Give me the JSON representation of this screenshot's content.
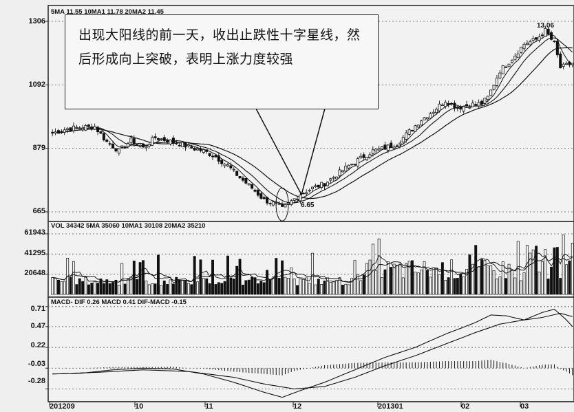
{
  "chart_data": {
    "type": "candlestick",
    "title": "",
    "annotation": "出现大阳线的前一天，收出止跌性十字星线，然后形成向上突破，表明上涨力度较强",
    "high_label": "13.06",
    "low_label": "6.65",
    "x_ticks": [
      "201209",
      "10",
      "11",
      "12",
      "201301",
      "02",
      "03"
    ],
    "price_panel": {
      "legend": "5MA 11.55  10MA1 11.78  20MA2 11.45",
      "y_ticks": [
        "1306",
        "1092",
        "879",
        "665"
      ],
      "ylim": [
        665,
        1306
      ]
    },
    "volume_panel": {
      "legend": "VOL 34342  5MA 35060  10MA1 30108  20MA2 35210",
      "y_ticks": [
        "61943",
        "41295",
        "20648"
      ],
      "ylim": [
        0,
        61943
      ]
    },
    "macd_panel": {
      "legend": "MACD- DIF 0.26  MACD 0.41  DIF-MACD -0.15",
      "y_ticks": [
        "0.71",
        "0.47",
        "0.22",
        "-0.03",
        "-0.28"
      ],
      "ylim": [
        -0.4,
        0.75
      ]
    },
    "price_waypoints": [
      [
        0,
        930
      ],
      [
        5,
        945
      ],
      [
        10,
        950
      ],
      [
        14,
        952
      ],
      [
        18,
        900
      ],
      [
        22,
        870
      ],
      [
        26,
        905
      ],
      [
        30,
        880
      ],
      [
        34,
        915
      ],
      [
        38,
        905
      ],
      [
        42,
        895
      ],
      [
        46,
        880
      ],
      [
        50,
        870
      ],
      [
        54,
        850
      ],
      [
        58,
        820
      ],
      [
        62,
        780
      ],
      [
        66,
        745
      ],
      [
        70,
        705
      ],
      [
        74,
        690
      ],
      [
        76,
        675
      ],
      [
        79,
        700
      ],
      [
        82,
        725
      ],
      [
        86,
        745
      ],
      [
        90,
        760
      ],
      [
        94,
        790
      ],
      [
        98,
        820
      ],
      [
        102,
        845
      ],
      [
        106,
        870
      ],
      [
        110,
        880
      ],
      [
        114,
        895
      ],
      [
        118,
        935
      ],
      [
        122,
        975
      ],
      [
        126,
        1005
      ],
      [
        130,
        1040
      ],
      [
        134,
        1015
      ],
      [
        138,
        1025
      ],
      [
        142,
        1030
      ],
      [
        144,
        1050
      ],
      [
        148,
        1140
      ],
      [
        152,
        1180
      ],
      [
        156,
        1230
      ],
      [
        160,
        1245
      ],
      [
        163,
        1275
      ],
      [
        166,
        1230
      ],
      [
        168,
        1150
      ],
      [
        172,
        1165
      ]
    ],
    "dif_waypoints": [
      [
        0,
        -0.1
      ],
      [
        10,
        -0.09
      ],
      [
        20,
        -0.05
      ],
      [
        30,
        -0.03
      ],
      [
        40,
        -0.04
      ],
      [
        50,
        -0.1
      ],
      [
        60,
        -0.2
      ],
      [
        70,
        -0.32
      ],
      [
        76,
        -0.38
      ],
      [
        82,
        -0.3
      ],
      [
        90,
        -0.2
      ],
      [
        100,
        -0.05
      ],
      [
        110,
        0.1
      ],
      [
        120,
        0.22
      ],
      [
        130,
        0.38
      ],
      [
        140,
        0.52
      ],
      [
        145,
        0.61
      ],
      [
        150,
        0.6
      ],
      [
        156,
        0.55
      ],
      [
        162,
        0.64
      ],
      [
        166,
        0.68
      ],
      [
        170,
        0.55
      ],
      [
        172,
        0.47
      ]
    ],
    "dea_waypoints": [
      [
        0,
        -0.1
      ],
      [
        15,
        -0.08
      ],
      [
        30,
        -0.05
      ],
      [
        45,
        -0.07
      ],
      [
        60,
        -0.14
      ],
      [
        70,
        -0.22
      ],
      [
        80,
        -0.28
      ],
      [
        90,
        -0.25
      ],
      [
        100,
        -0.14
      ],
      [
        110,
        0.0
      ],
      [
        120,
        0.12
      ],
      [
        130,
        0.26
      ],
      [
        140,
        0.4
      ],
      [
        148,
        0.5
      ],
      [
        156,
        0.55
      ],
      [
        162,
        0.58
      ],
      [
        168,
        0.63
      ],
      [
        172,
        0.59
      ]
    ]
  }
}
